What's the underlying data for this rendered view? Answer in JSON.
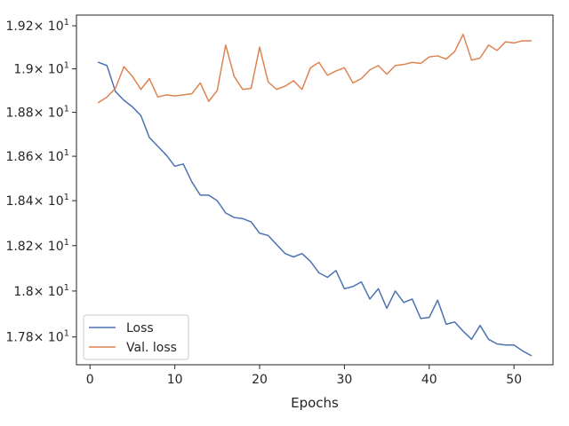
{
  "chart_data": {
    "type": "line",
    "xlabel": "Epochs",
    "ylabel": "",
    "y_scale": "log",
    "xlim": [
      -1.6,
      54.6
    ],
    "ylim": [
      17.68,
      19.25
    ],
    "x_ticks": [
      {
        "value": 0,
        "label": "0"
      },
      {
        "value": 10,
        "label": "10"
      },
      {
        "value": 20,
        "label": "20"
      },
      {
        "value": 30,
        "label": "30"
      },
      {
        "value": 40,
        "label": "40"
      },
      {
        "value": 50,
        "label": "50"
      }
    ],
    "y_ticks": [
      {
        "value": 17.8,
        "mant": "1.78",
        "exp": "1"
      },
      {
        "value": 18.0,
        "mant": "1.8",
        "exp": "1"
      },
      {
        "value": 18.2,
        "mant": "1.82",
        "exp": "1"
      },
      {
        "value": 18.4,
        "mant": "1.84",
        "exp": "1"
      },
      {
        "value": 18.6,
        "mant": "1.86",
        "exp": "1"
      },
      {
        "value": 18.8,
        "mant": "1.88",
        "exp": "1"
      },
      {
        "value": 19.0,
        "mant": "1.9",
        "exp": "1"
      },
      {
        "value": 19.2,
        "mant": "1.92",
        "exp": "1"
      }
    ],
    "tick_times": "× 10",
    "legend_location": "lower-left",
    "grid": false,
    "series": [
      {
        "name": "Loss",
        "color": "#4c72b0",
        "x": [
          1,
          2,
          3,
          4,
          5,
          6,
          7,
          8,
          9,
          10,
          11,
          12,
          13,
          14,
          15,
          16,
          17,
          18,
          19,
          20,
          21,
          22,
          23,
          24,
          25,
          26,
          27,
          28,
          29,
          30,
          31,
          32,
          33,
          34,
          35,
          36,
          37,
          38,
          39,
          40,
          41,
          42,
          43,
          44,
          45,
          46,
          47,
          48,
          49,
          50,
          51,
          52
        ],
        "values": [
          19.03,
          19.015,
          18.895,
          18.855,
          18.825,
          18.785,
          18.685,
          18.645,
          18.605,
          18.555,
          18.565,
          18.485,
          18.425,
          18.425,
          18.4,
          18.345,
          18.325,
          18.32,
          18.305,
          18.255,
          18.245,
          18.205,
          18.165,
          18.15,
          18.165,
          18.13,
          18.08,
          18.06,
          18.09,
          18.01,
          18.02,
          18.04,
          17.965,
          18.01,
          17.925,
          18.0,
          17.95,
          17.965,
          17.88,
          17.885,
          17.96,
          17.855,
          17.865,
          17.825,
          17.79,
          17.85,
          17.79,
          17.77,
          17.765,
          17.765,
          17.74,
          17.72
        ]
      },
      {
        "name": "Val. loss",
        "color": "#dd8452",
        "x": [
          1,
          2,
          3,
          4,
          5,
          6,
          7,
          8,
          9,
          10,
          11,
          12,
          13,
          14,
          15,
          16,
          17,
          18,
          19,
          20,
          21,
          22,
          23,
          24,
          25,
          26,
          27,
          28,
          29,
          30,
          31,
          32,
          33,
          34,
          35,
          36,
          37,
          38,
          39,
          40,
          41,
          42,
          43,
          44,
          45,
          46,
          47,
          48,
          49,
          50,
          51,
          52
        ],
        "values": [
          18.845,
          18.87,
          18.91,
          19.01,
          18.965,
          18.905,
          18.955,
          18.87,
          18.88,
          18.875,
          18.88,
          18.885,
          18.935,
          18.85,
          18.9,
          19.11,
          18.965,
          18.905,
          18.91,
          19.1,
          18.94,
          18.905,
          18.92,
          18.945,
          18.905,
          19.005,
          19.03,
          18.97,
          18.99,
          19.005,
          18.935,
          18.955,
          18.995,
          19.015,
          18.975,
          19.015,
          19.02,
          19.03,
          19.025,
          19.055,
          19.06,
          19.045,
          19.08,
          19.16,
          19.04,
          19.05,
          19.11,
          19.085,
          19.125,
          19.12,
          19.13,
          19.13
        ]
      }
    ]
  }
}
